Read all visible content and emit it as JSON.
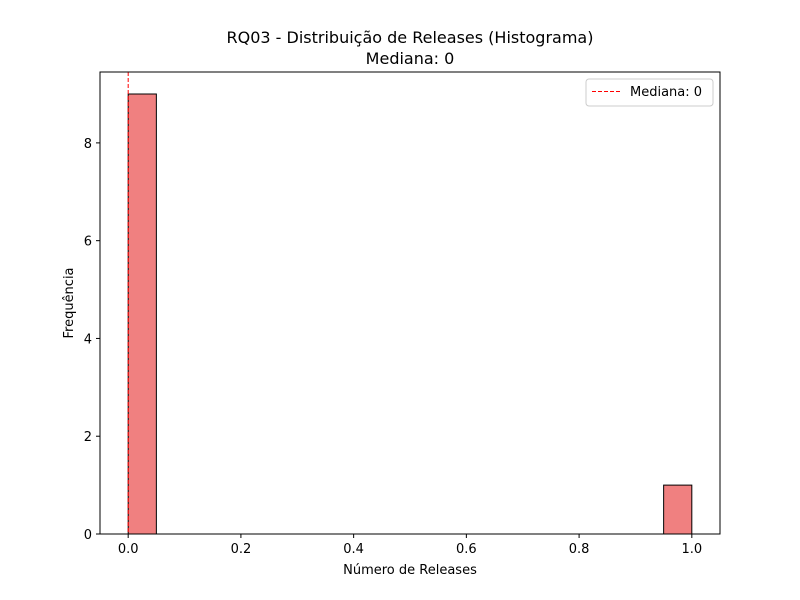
{
  "chart_data": {
    "type": "bar",
    "title": "RQ03 - Distribuição de Releases (Histograma)",
    "subtitle": "Mediana: 0",
    "xlabel": "Número de Releases",
    "ylabel": "Frequência",
    "xlim": [
      -0.05,
      1.05
    ],
    "ylim": [
      0,
      9.45
    ],
    "xticks": [
      0.0,
      0.2,
      0.4,
      0.6,
      0.8,
      1.0
    ],
    "xtick_labels": [
      "0.0",
      "0.2",
      "0.4",
      "0.6",
      "0.8",
      "1.0"
    ],
    "yticks": [
      0,
      2,
      4,
      6,
      8
    ],
    "ytick_labels": [
      "0",
      "2",
      "4",
      "6",
      "8"
    ],
    "bins": [
      {
        "start": 0.0,
        "end": 0.05,
        "count": 9
      },
      {
        "start": 0.95,
        "end": 1.0,
        "count": 1
      }
    ],
    "bar_color": "#f08080",
    "median": {
      "value": 0,
      "label": "Mediana: 0",
      "color": "#ff0000"
    },
    "legend_position": "top-right",
    "grid": false
  }
}
